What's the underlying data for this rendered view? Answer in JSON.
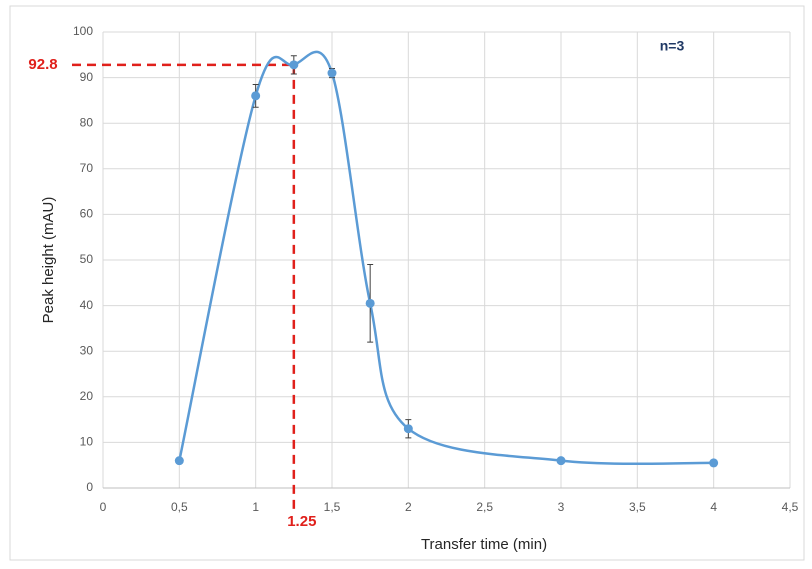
{
  "chart_data": {
    "type": "line",
    "x_label": "Transfer time (min)",
    "y_label": "Peak height  (mAU)",
    "x": [
      0.5,
      1,
      1.25,
      1.5,
      1.75,
      2,
      3,
      4
    ],
    "values": [
      6,
      86,
      92.8,
      91,
      40.5,
      13,
      6,
      5.5
    ],
    "errors": [
      0.3,
      2.5,
      2,
      1,
      8.5,
      2,
      0.5,
      0.5
    ],
    "color": "#5b9bd5",
    "xlim": [
      0,
      4.5
    ],
    "xticks": [
      0,
      {
        "value": 0.5,
        "label": "0,5"
      },
      1,
      {
        "value": 1.5,
        "label": "1,5"
      },
      2,
      {
        "value": 2.5,
        "label": "2,5"
      },
      3,
      {
        "value": 3.5,
        "label": "3,5"
      },
      4,
      {
        "value": 4.5,
        "label": "4,5"
      }
    ],
    "ylim": [
      0,
      100
    ],
    "yticks": [
      0,
      10,
      20,
      30,
      40,
      50,
      60,
      70,
      80,
      90,
      100
    ],
    "grid": true,
    "highlight": {
      "x": 1.25,
      "y": 92.8,
      "color": "#e0201b"
    },
    "note": "n=3"
  }
}
